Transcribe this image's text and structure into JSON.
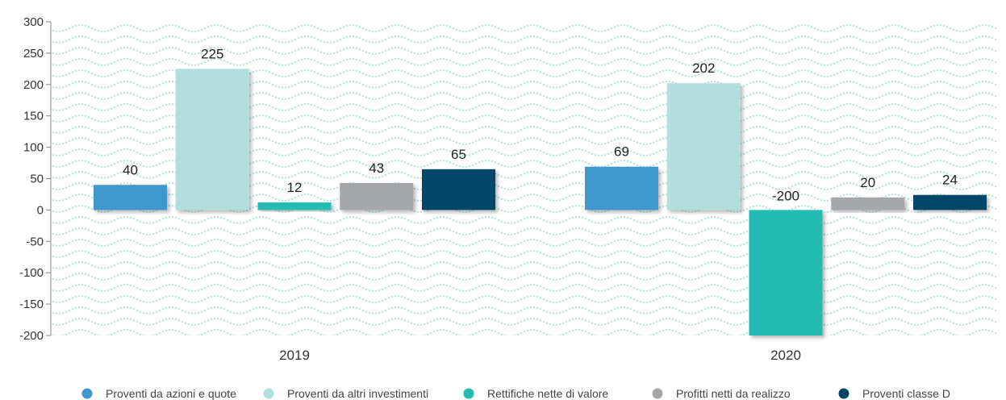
{
  "chart_data": {
    "type": "bar",
    "categories": [
      "2019",
      "2020"
    ],
    "series": [
      {
        "name": "Proventi da azioni e quote",
        "color": "#3f97cb",
        "values": [
          40,
          69
        ]
      },
      {
        "name": "Proventi da altri investimenti",
        "color": "#b2dfdd",
        "values": [
          225,
          202
        ]
      },
      {
        "name": "Rettifiche nette di valore",
        "color": "#22bcb3",
        "values": [
          12,
          -200
        ]
      },
      {
        "name": "Profitti netti da realizzo",
        "color": "#a5a6aa",
        "values": [
          43,
          20
        ]
      },
      {
        "name": "Proventi classe D",
        "color": "#01466a",
        "values": [
          65,
          24
        ]
      }
    ],
    "ylim": [
      -200,
      300
    ],
    "yticks": [
      300,
      250,
      200,
      150,
      100,
      50,
      0,
      -50,
      -100,
      -150,
      -200
    ],
    "xlabel": "",
    "ylabel": "",
    "legend": "bottom",
    "grid": false,
    "background_pattern": "dotted-waves",
    "pattern_color": "#bfe3e1"
  }
}
